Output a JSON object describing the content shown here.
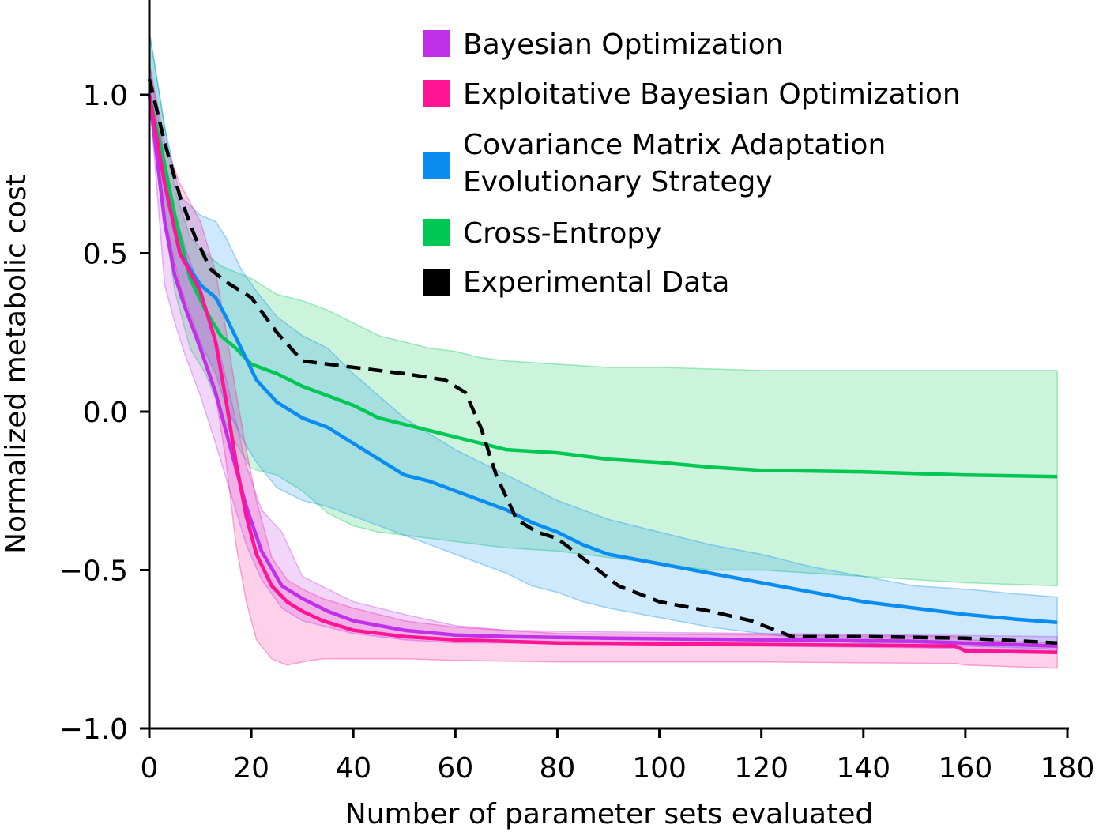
{
  "chart_data": {
    "type": "line",
    "title": "",
    "xlabel": "Number of parameter sets evaluated",
    "ylabel": "Normalized metabolic cost",
    "xlim": [
      0,
      180
    ],
    "ylim": [
      -1.0,
      1.3
    ],
    "xticks": [
      0,
      20,
      40,
      60,
      80,
      100,
      120,
      140,
      160,
      180
    ],
    "xtick_labels": [
      "0",
      "20",
      "40",
      "60",
      "80",
      "100",
      "120",
      "140",
      "160",
      "180"
    ],
    "yticks": [
      1.0,
      0.5,
      0.0,
      -0.5,
      -1.0
    ],
    "ytick_labels": [
      "1.0",
      "0.5",
      "0.0",
      "−0.5",
      "−1.0"
    ],
    "grid": false,
    "legend_position": "top-right",
    "series": [
      {
        "name": "Bayesian Optimization",
        "color": "#c030e8",
        "dashed": false,
        "x": [
          0,
          3,
          5,
          7,
          10,
          13,
          16,
          19,
          22,
          26,
          30,
          35,
          40,
          50,
          60,
          70,
          90,
          120,
          150,
          178
        ],
        "y": [
          1.0,
          0.6,
          0.43,
          0.33,
          0.2,
          0.06,
          -0.12,
          -0.3,
          -0.44,
          -0.55,
          -0.59,
          -0.63,
          -0.66,
          -0.69,
          -0.705,
          -0.71,
          -0.715,
          -0.72,
          -0.725,
          -0.74
        ],
        "lower": [
          1.0,
          0.4,
          0.28,
          0.18,
          0.05,
          -0.1,
          -0.26,
          -0.42,
          -0.53,
          -0.62,
          -0.66,
          -0.68,
          -0.7,
          -0.72,
          -0.73,
          -0.73,
          -0.735,
          -0.74,
          -0.745,
          -0.755
        ],
        "upper": [
          1.1,
          0.8,
          0.63,
          0.52,
          0.38,
          0.24,
          0.04,
          -0.17,
          -0.31,
          -0.38,
          -0.52,
          -0.56,
          -0.6,
          -0.64,
          -0.675,
          -0.69,
          -0.695,
          -0.7,
          -0.705,
          -0.71
        ]
      },
      {
        "name": "Exploitative Bayesian Optimization",
        "color": "#ff1493",
        "dashed": false,
        "x": [
          0,
          3,
          6,
          10,
          13,
          15,
          17,
          19,
          21,
          24,
          27,
          30,
          34,
          40,
          50,
          60,
          80,
          120,
          158,
          160,
          178
        ],
        "y": [
          1.0,
          0.72,
          0.5,
          0.38,
          0.22,
          0.04,
          -0.16,
          -0.33,
          -0.45,
          -0.55,
          -0.6,
          -0.63,
          -0.66,
          -0.69,
          -0.71,
          -0.72,
          -0.73,
          -0.735,
          -0.74,
          -0.755,
          -0.76
        ],
        "lower": [
          1.0,
          0.62,
          0.4,
          0.22,
          0.05,
          -0.15,
          -0.42,
          -0.6,
          -0.72,
          -0.78,
          -0.8,
          -0.79,
          -0.78,
          -0.78,
          -0.78,
          -0.785,
          -0.79,
          -0.79,
          -0.795,
          -0.8,
          -0.81
        ],
        "upper": [
          1.1,
          0.85,
          0.72,
          0.6,
          0.44,
          0.26,
          0.06,
          -0.12,
          -0.28,
          -0.46,
          -0.53,
          -0.56,
          -0.59,
          -0.62,
          -0.66,
          -0.68,
          -0.7,
          -0.705,
          -0.71,
          -0.72,
          -0.73
        ]
      },
      {
        "name": "Covariance Matrix Adaptation Evolutionary Strategy",
        "color": "#0a8cf0",
        "dashed": false,
        "x": [
          0,
          3,
          6,
          10,
          13,
          15,
          18,
          21,
          25,
          30,
          35,
          40,
          45,
          50,
          55,
          60,
          65,
          70,
          75,
          80,
          85,
          90,
          100,
          110,
          120,
          130,
          140,
          150,
          160,
          170,
          178
        ],
        "y": [
          1.0,
          0.72,
          0.5,
          0.4,
          0.36,
          0.3,
          0.2,
          0.1,
          0.03,
          -0.02,
          -0.05,
          -0.1,
          -0.15,
          -0.2,
          -0.22,
          -0.25,
          -0.28,
          -0.31,
          -0.35,
          -0.38,
          -0.42,
          -0.45,
          -0.48,
          -0.51,
          -0.54,
          -0.57,
          -0.6,
          -0.62,
          -0.64,
          -0.655,
          -0.665
        ],
        "lower": [
          1.0,
          0.6,
          0.36,
          0.22,
          0.12,
          0.02,
          -0.08,
          -0.16,
          -0.24,
          -0.28,
          -0.3,
          -0.33,
          -0.36,
          -0.39,
          -0.42,
          -0.45,
          -0.48,
          -0.51,
          -0.55,
          -0.57,
          -0.6,
          -0.62,
          -0.65,
          -0.68,
          -0.7,
          -0.72,
          -0.73,
          -0.74,
          -0.74,
          -0.745,
          -0.75
        ],
        "upper": [
          1.2,
          0.9,
          0.68,
          0.62,
          0.6,
          0.55,
          0.45,
          0.38,
          0.3,
          0.24,
          0.2,
          0.12,
          0.05,
          -0.02,
          -0.07,
          -0.12,
          -0.16,
          -0.2,
          -0.24,
          -0.28,
          -0.31,
          -0.34,
          -0.38,
          -0.42,
          -0.45,
          -0.49,
          -0.52,
          -0.55,
          -0.56,
          -0.575,
          -0.585
        ]
      },
      {
        "name": "Cross-Entropy",
        "color": "#00c853",
        "dashed": false,
        "x": [
          0,
          3,
          5,
          8,
          11,
          14,
          17,
          20,
          25,
          30,
          35,
          40,
          45,
          50,
          55,
          60,
          65,
          70,
          80,
          90,
          100,
          110,
          120,
          140,
          160,
          178
        ],
        "y": [
          1.0,
          0.78,
          0.62,
          0.42,
          0.32,
          0.24,
          0.2,
          0.15,
          0.12,
          0.08,
          0.05,
          0.02,
          -0.02,
          -0.04,
          -0.06,
          -0.08,
          -0.1,
          -0.12,
          -0.13,
          -0.15,
          -0.16,
          -0.175,
          -0.185,
          -0.19,
          -0.2,
          -0.205
        ],
        "lower": [
          1.0,
          0.6,
          0.38,
          0.2,
          0.12,
          0.0,
          -0.1,
          -0.18,
          -0.2,
          -0.25,
          -0.32,
          -0.36,
          -0.38,
          -0.39,
          -0.4,
          -0.41,
          -0.42,
          -0.43,
          -0.44,
          -0.46,
          -0.48,
          -0.5,
          -0.5,
          -0.52,
          -0.54,
          -0.55
        ],
        "upper": [
          1.2,
          0.9,
          0.7,
          0.55,
          0.5,
          0.46,
          0.44,
          0.42,
          0.37,
          0.35,
          0.32,
          0.28,
          0.24,
          0.22,
          0.2,
          0.19,
          0.17,
          0.16,
          0.15,
          0.14,
          0.14,
          0.135,
          0.13,
          0.13,
          0.13,
          0.13
        ]
      },
      {
        "name": "Experimental Data",
        "color": "#000000",
        "dashed": true,
        "x": [
          0,
          3,
          6,
          9,
          12,
          15,
          20,
          25,
          30,
          40,
          50,
          58,
          62,
          65,
          68,
          72,
          76,
          80,
          84,
          92,
          100,
          110,
          118,
          126,
          140,
          160,
          178
        ],
        "y": [
          1.05,
          0.85,
          0.68,
          0.55,
          0.45,
          0.41,
          0.36,
          0.25,
          0.16,
          0.14,
          0.12,
          0.1,
          0.06,
          -0.05,
          -0.2,
          -0.34,
          -0.38,
          -0.4,
          -0.45,
          -0.55,
          -0.6,
          -0.63,
          -0.66,
          -0.71,
          -0.71,
          -0.715,
          -0.73
        ]
      }
    ]
  }
}
